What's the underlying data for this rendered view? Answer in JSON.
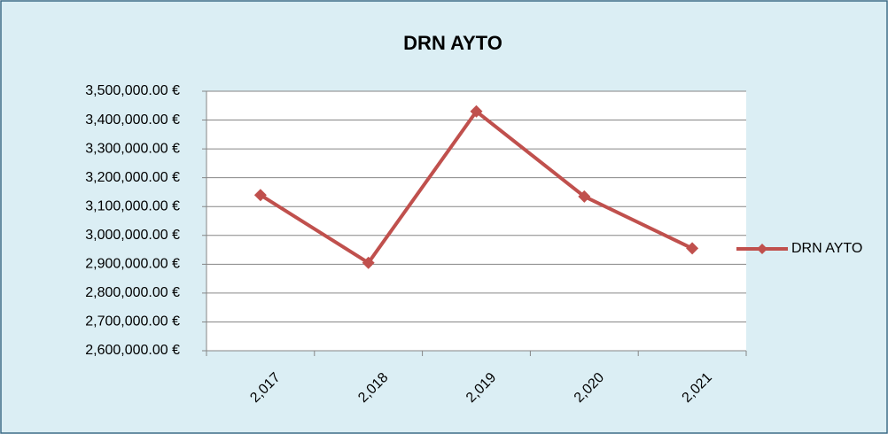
{
  "chart_data": {
    "type": "line",
    "title": "DRN AYTO",
    "categories": [
      "2,017",
      "2,018",
      "2,019",
      "2,020",
      "2,021"
    ],
    "series": [
      {
        "name": "DRN AYTO",
        "color": "#c0504d",
        "values": [
          3140000,
          2905000,
          3430000,
          3135000,
          2955000
        ]
      }
    ],
    "ylim": [
      2600000,
      3500000
    ],
    "yticks": [
      {
        "value": 2600000,
        "label": "2,600,000.00 €"
      },
      {
        "value": 2700000,
        "label": "2,700,000.00 €"
      },
      {
        "value": 2800000,
        "label": "2,800,000.00 €"
      },
      {
        "value": 2900000,
        "label": "2,900,000.00 €"
      },
      {
        "value": 3000000,
        "label": "3,000,000.00 €"
      },
      {
        "value": 3100000,
        "label": "3,100,000.00 €"
      },
      {
        "value": 3200000,
        "label": "3,200,000.00 €"
      },
      {
        "value": 3300000,
        "label": "3,300,000.00 €"
      },
      {
        "value": 3400000,
        "label": "3,400,000.00 €"
      },
      {
        "value": 3500000,
        "label": "3,500,000.00 €"
      }
    ],
    "grid": true,
    "legend": "right"
  }
}
